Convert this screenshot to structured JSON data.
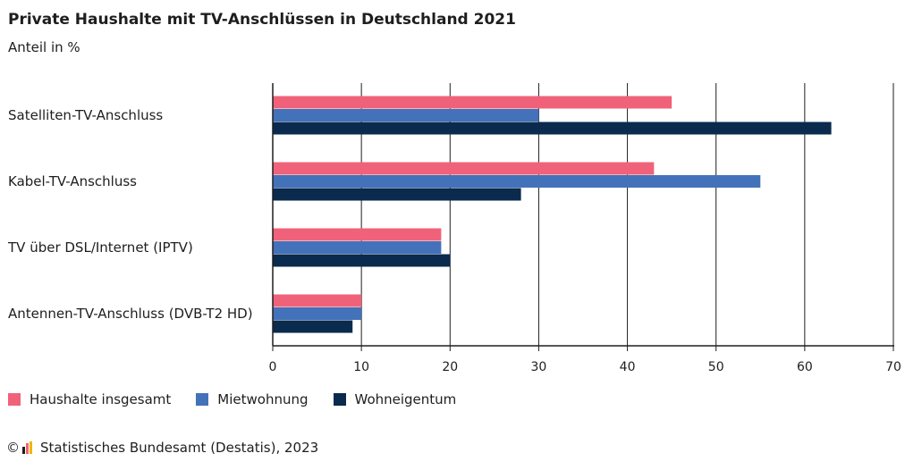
{
  "title": "Private Haushalte mit TV-Anschlüssen in Deutschland 2021",
  "subtitle": "Anteil in %",
  "source": {
    "copyright_symbol": "©",
    "text": "Statistisches Bundesamt (Destatis), 2023"
  },
  "chart_data": {
    "type": "bar",
    "orientation": "horizontal",
    "title": "Private Haushalte mit TV-Anschlüssen in Deutschland 2021",
    "subtitle": "Anteil in %",
    "xlabel": "",
    "ylabel": "",
    "xlim": [
      0,
      70
    ],
    "ticks": [
      0,
      10,
      20,
      30,
      40,
      50,
      60,
      70
    ],
    "grid": "vertical",
    "legend_position": "bottom-left",
    "categories": [
      "Satelliten-TV-Anschluss",
      "Kabel-TV-Anschluss",
      "TV über DSL/Internet (IPTV)",
      "Antennen-TV-Anschluss (DVB-T2 HD)"
    ],
    "series": [
      {
        "name": "Haushalte insgesamt",
        "color": "#f0627a",
        "values": [
          45,
          43,
          19,
          10
        ]
      },
      {
        "name": "Mietwohnung",
        "color": "#4472ba",
        "values": [
          30,
          55,
          19,
          10
        ]
      },
      {
        "name": "Wohneigentum",
        "color": "#0a2a4e",
        "values": [
          63,
          28,
          20,
          9
        ]
      }
    ]
  }
}
